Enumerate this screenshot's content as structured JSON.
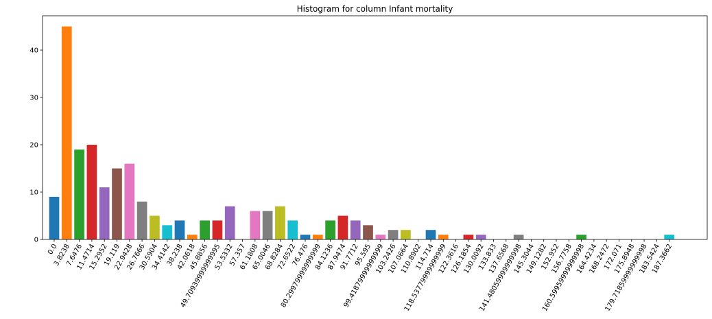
{
  "chart_data": {
    "type": "bar",
    "title": "Histogram for column Infant mortality",
    "xlabel": "",
    "ylabel": "",
    "ylim": [
      0,
      47.25
    ],
    "yticks": [
      0,
      10,
      20,
      30,
      40
    ],
    "grid": false,
    "categories": [
      "0.0",
      "3.8238",
      "7.6476",
      "11.4714",
      "15.2952",
      "19.119",
      "22.9428",
      "26.7666",
      "30.5904",
      "34.4142",
      "38.238",
      "42.0618",
      "45.8856",
      "49.70939999999995",
      "53.5332",
      "57.357",
      "61.1808",
      "65.0046",
      "68.8284",
      "72.6522",
      "76.476",
      "80.29979999999999",
      "84.1236",
      "87.9474",
      "91.7712",
      "95.595",
      "99.41879999999999",
      "103.2426",
      "107.0664",
      "110.8902",
      "114.714",
      "118.53779999999999",
      "122.3616",
      "126.1854",
      "130.0092",
      "133.833",
      "137.6568",
      "141.48059999999998",
      "145.3044",
      "149.1282",
      "152.952",
      "156.7758",
      "160.59959999999998",
      "164.4234",
      "168.2472",
      "172.071",
      "175.8948",
      "179.71859999999998",
      "183.5424",
      "187.3662"
    ],
    "values": [
      9,
      45,
      19,
      20,
      11,
      15,
      16,
      8,
      5,
      3,
      4,
      1,
      4,
      4,
      7,
      0,
      6,
      6,
      7,
      4,
      1,
      1,
      4,
      5,
      4,
      3,
      1,
      2,
      2,
      0,
      2,
      1,
      0,
      1,
      1,
      0,
      0,
      1,
      0,
      0,
      0,
      0,
      1,
      0,
      0,
      0,
      0,
      0,
      0,
      1
    ],
    "colors": [
      "#1f77b4",
      "#ff7f0e",
      "#2ca02c",
      "#d62728",
      "#9467bd",
      "#8c564b",
      "#e377c2",
      "#7f7f7f",
      "#bcbd22",
      "#17becf"
    ]
  }
}
